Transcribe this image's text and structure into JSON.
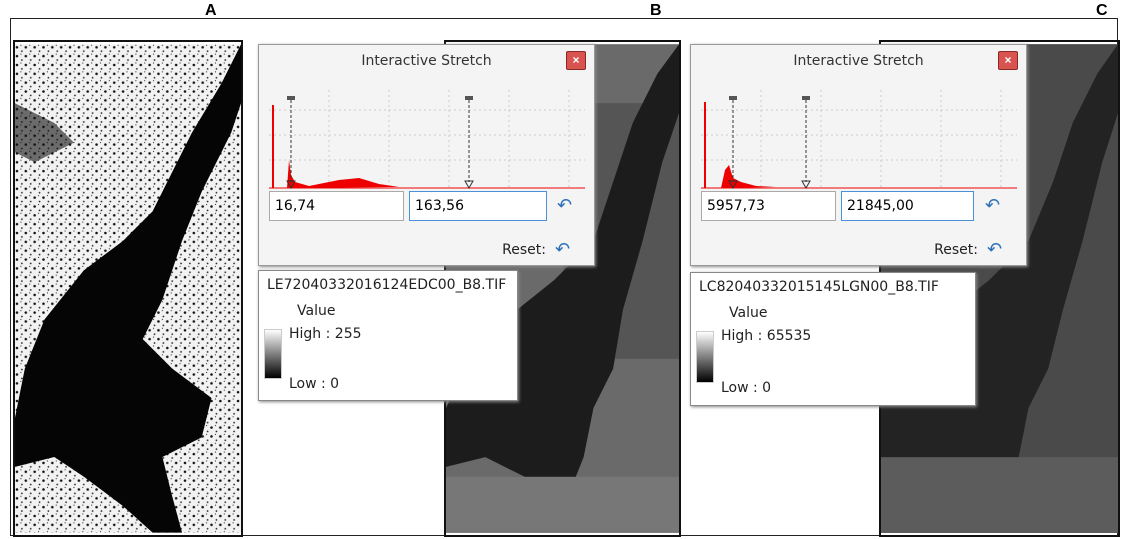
{
  "panels": [
    {
      "label": "A"
    },
    {
      "label": "B",
      "dialog": {
        "title": "Interactive Stretch",
        "min": "16,74",
        "max": "163,56",
        "reset": "Reset:"
      },
      "legend": {
        "file": "LE72040332016124EDC00_B8.TIF",
        "heading": "Value",
        "high": "High : 255",
        "low": "Low : 0"
      }
    },
    {
      "label": "C",
      "dialog": {
        "title": "Interactive Stretch",
        "min": "5957,73",
        "max": "21845,00",
        "reset": "Reset:"
      },
      "legend": {
        "file": "LC82040332015145LGN00_B8.TIF",
        "heading": "Value",
        "high": "High : 65535",
        "low": "Low : 0"
      }
    }
  ]
}
